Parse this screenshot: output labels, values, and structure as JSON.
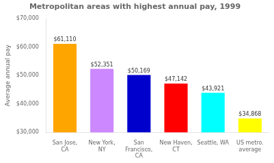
{
  "chart_data": {
    "type": "bar",
    "title": "Metropolitan areas with highest annual pay, 1999",
    "categories": [
      "San Jose,\nCA",
      "New York,\nNY",
      "San\nFrancisco,\nCA",
      "New Haven,\nCT",
      "Seattle, WA",
      "US metro.\naverage"
    ],
    "values": [
      61110,
      52351,
      50169,
      47142,
      43921,
      34868
    ],
    "value_labels": [
      "$61,110",
      "$52,351",
      "$50,169",
      "$47,142",
      "$43,921",
      "$34,868"
    ],
    "data_labels": true,
    "colors": [
      "#FFA500",
      "#CC88FF",
      "#0000CC",
      "#FF0000",
      "#00FFFF",
      "#FFFF00"
    ],
    "ylabel": "Average annual pay",
    "ylim": [
      30000,
      70000
    ],
    "yticks": [
      {
        "value": 30000,
        "label": "$30,000"
      },
      {
        "value": 40000,
        "label": "$40,000"
      },
      {
        "value": 50000,
        "label": "$50,000"
      },
      {
        "value": 60000,
        "label": "$60,000"
      },
      {
        "value": 70000,
        "label": "$70,000"
      }
    ],
    "grid": false
  }
}
